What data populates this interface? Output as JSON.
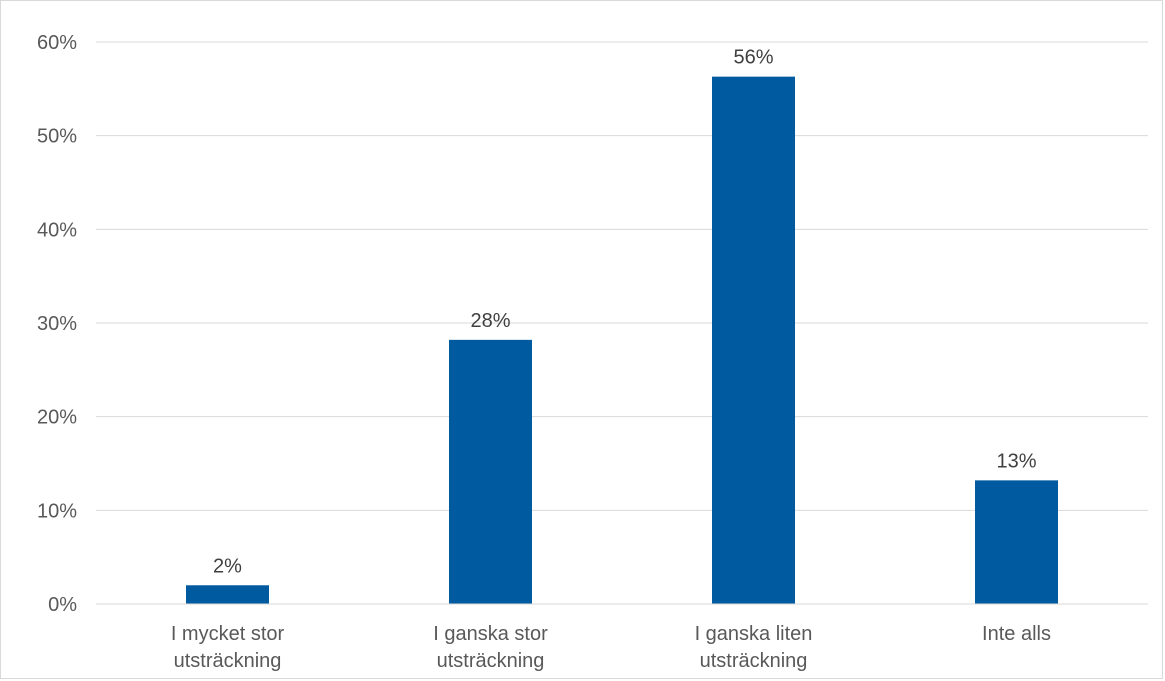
{
  "chart_data": {
    "type": "bar",
    "categories": [
      [
        "I mycket stor",
        "utsträckning"
      ],
      [
        "I ganska stor",
        "utsträckning"
      ],
      [
        "I ganska liten",
        "utsträckning"
      ],
      [
        "Inte alls"
      ]
    ],
    "values": [
      2,
      28.2,
      56.3,
      13.2
    ],
    "data_labels": [
      "2%",
      "28%",
      "56%",
      "13%"
    ],
    "y_ticks": [
      "0%",
      "10%",
      "20%",
      "30%",
      "40%",
      "50%",
      "60%"
    ],
    "ylim": [
      0,
      60
    ],
    "grid": true,
    "legend": "none",
    "bar_color": "#005aa0",
    "gridline_color": "#d9d9d9"
  }
}
